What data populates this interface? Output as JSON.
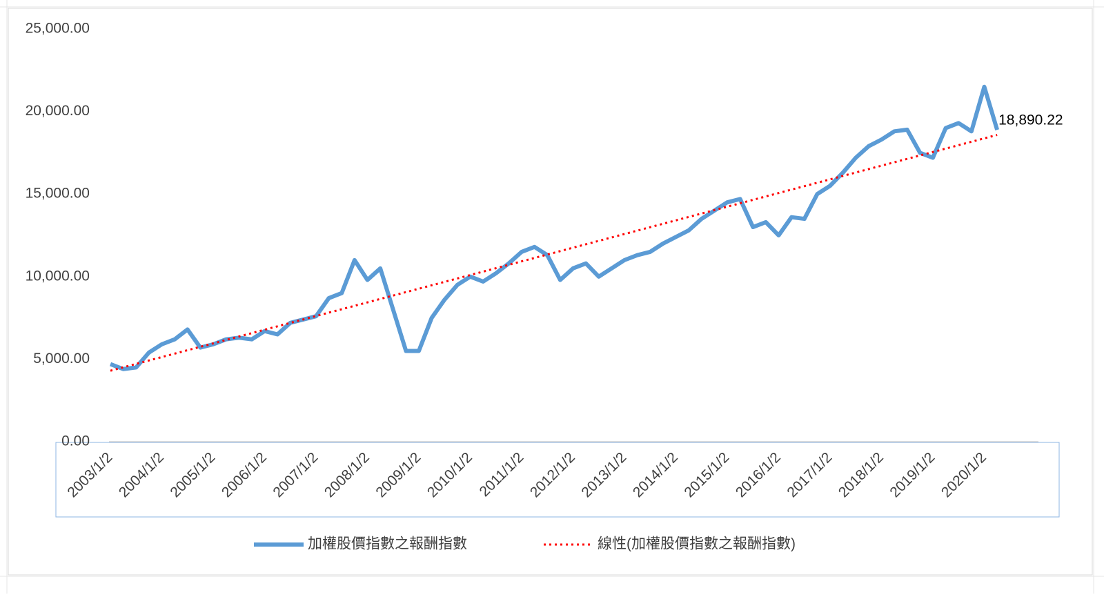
{
  "chart_data": {
    "type": "line",
    "categories": [
      "2003/1/2",
      null,
      null,
      null,
      "2004/1/2",
      null,
      null,
      null,
      "2005/1/2",
      null,
      null,
      null,
      "2006/1/2",
      null,
      null,
      null,
      "2007/1/2",
      null,
      null,
      null,
      "2008/1/2",
      null,
      null,
      null,
      "2009/1/2",
      null,
      null,
      null,
      "2010/1/2",
      null,
      null,
      null,
      "2011/1/2",
      null,
      null,
      null,
      "2012/1/2",
      null,
      null,
      null,
      "2013/1/2",
      null,
      null,
      null,
      "2014/1/2",
      null,
      null,
      null,
      "2015/1/2",
      null,
      null,
      null,
      "2016/1/2",
      null,
      null,
      null,
      "2017/1/2",
      null,
      null,
      null,
      "2018/1/2",
      null,
      null,
      null,
      "2019/1/2",
      null,
      null,
      null,
      "2020/1/2",
      null
    ],
    "series": [
      {
        "name": "加權股價指數之報酬指數",
        "color": "#5b9bd5",
        "style": "solid",
        "values": [
          4700,
          4400,
          4500,
          5400,
          5900,
          6200,
          6800,
          5700,
          5900,
          6200,
          6300,
          6200,
          6700,
          6500,
          7200,
          7400,
          7600,
          8700,
          9000,
          11000,
          9800,
          10500,
          8000,
          5500,
          5500,
          7500,
          8600,
          9500,
          10000,
          9700,
          10200,
          10800,
          11500,
          11800,
          11300,
          9800,
          10500,
          10800,
          10000,
          10500,
          11000,
          11300,
          11500,
          12000,
          12400,
          12800,
          13500,
          14000,
          14500,
          14700,
          13000,
          13300,
          12500,
          13600,
          13500,
          15000,
          15500,
          16300,
          17200,
          17900,
          18300,
          18800,
          18900,
          17500,
          17200,
          19000,
          19300,
          18800,
          21500,
          18890.22
        ],
        "value_labels": [
          null,
          null,
          null,
          null,
          null,
          null,
          null,
          null,
          null,
          null,
          null,
          null,
          null,
          null,
          null,
          null,
          null,
          null,
          null,
          null,
          null,
          null,
          null,
          null,
          null,
          null,
          null,
          null,
          null,
          null,
          null,
          null,
          null,
          null,
          null,
          null,
          null,
          null,
          null,
          null,
          null,
          null,
          null,
          null,
          null,
          null,
          null,
          null,
          null,
          null,
          null,
          null,
          null,
          null,
          null,
          null,
          null,
          null,
          null,
          null,
          null,
          null,
          null,
          null,
          null,
          null,
          null,
          null,
          null,
          "18,890.22"
        ]
      },
      {
        "name": "線性(加權股價指數之報酬指數)",
        "color": "#ff0000",
        "style": "dotted",
        "values": [
          4300,
          4507,
          4714,
          4921,
          5128,
          5335,
          5542,
          5749,
          5956,
          6163,
          6370,
          6577,
          6784,
          6991,
          7198,
          7405,
          7612,
          7819,
          8026,
          8233,
          8440,
          8647,
          8854,
          9061,
          9268,
          9475,
          9682,
          9889,
          10096,
          10303,
          10510,
          10717,
          10924,
          11131,
          11338,
          11545,
          11752,
          11959,
          12166,
          12373,
          12580,
          12787,
          12994,
          13201,
          13408,
          13615,
          13822,
          14029,
          14236,
          14443,
          14650,
          14857,
          15064,
          15271,
          15478,
          15685,
          15892,
          16099,
          16306,
          16513,
          16720,
          16927,
          17134,
          17341,
          17548,
          17755,
          17962,
          18169,
          18376,
          18583
        ]
      }
    ],
    "ylim": [
      0,
      25000
    ],
    "yticks": [
      {
        "value": 0,
        "label": "0.00"
      },
      {
        "value": 5000,
        "label": "5,000.00"
      },
      {
        "value": 10000,
        "label": "10,000.00"
      },
      {
        "value": 15000,
        "label": "15,000.00"
      },
      {
        "value": 20000,
        "label": "20,000.00"
      },
      {
        "value": 25000,
        "label": "25,000.00"
      }
    ],
    "grid": false,
    "legend": "bottom"
  }
}
